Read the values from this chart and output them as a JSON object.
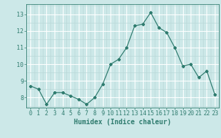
{
  "x": [
    0,
    1,
    2,
    3,
    4,
    5,
    6,
    7,
    8,
    9,
    10,
    11,
    12,
    13,
    14,
    15,
    16,
    17,
    18,
    19,
    20,
    21,
    22,
    23
  ],
  "y": [
    8.7,
    8.5,
    7.6,
    8.3,
    8.3,
    8.1,
    7.9,
    7.6,
    8.0,
    8.8,
    10.0,
    10.3,
    11.0,
    12.3,
    12.4,
    13.1,
    12.2,
    11.9,
    11.0,
    9.9,
    10.0,
    9.2,
    9.6,
    8.2
  ],
  "line_color": "#2e7b6e",
  "bg_color": "#cce8e8",
  "grid_major_color": "#ffffff",
  "grid_minor_color": "#b8d8d8",
  "xlabel": "Humidex (Indice chaleur)",
  "ylim": [
    7.4,
    13.6
  ],
  "xlim": [
    -0.5,
    23.5
  ],
  "yticks": [
    8,
    9,
    10,
    11,
    12,
    13
  ],
  "xticks": [
    0,
    1,
    2,
    3,
    4,
    5,
    6,
    7,
    8,
    9,
    10,
    11,
    12,
    13,
    14,
    15,
    16,
    17,
    18,
    19,
    20,
    21,
    22,
    23
  ],
  "tick_fontsize": 6,
  "xlabel_fontsize": 7
}
